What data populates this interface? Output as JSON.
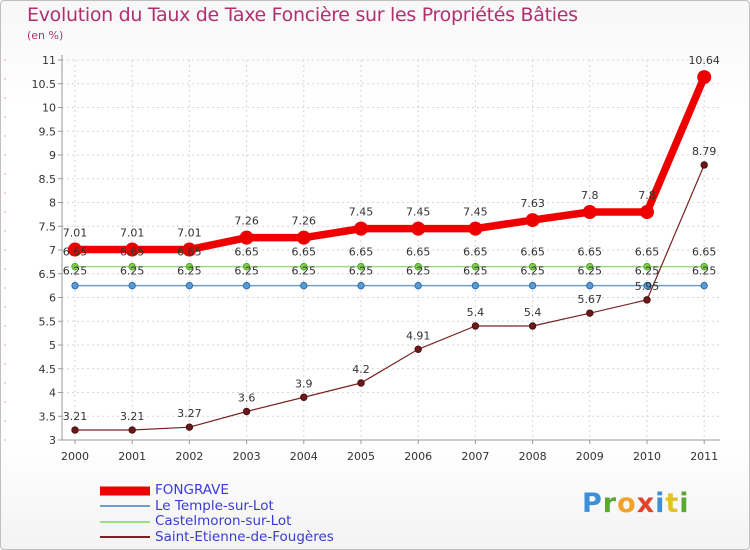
{
  "title": "Evolution du Taux de Taxe Foncière sur les Propriétés Bâties",
  "unit_label": "(en %)",
  "brand": {
    "letters": [
      "P",
      "r",
      "o",
      "x",
      "i",
      "t",
      "i"
    ],
    "colors": [
      "#3d8fd8",
      "#58a832",
      "#f2a12b",
      "#e2432b",
      "#3d8fd8",
      "#e2c12b",
      "#58a832"
    ]
  },
  "chart_data": {
    "type": "line",
    "title": "Evolution du Taux de Taxe Foncière sur les Propriétés Bâties",
    "ylabel": "(en %)",
    "xlabel": "",
    "ylim": [
      3,
      11
    ],
    "yticks": [
      "3",
      "3.5",
      "4",
      "4.5",
      "5",
      "5.5",
      "6",
      "6.5",
      "7",
      "7.5",
      "8",
      "8.5",
      "9",
      "9.5",
      "10",
      "10.5",
      "11"
    ],
    "x": [
      "2000",
      "2001",
      "2002",
      "2003",
      "2004",
      "2005",
      "2006",
      "2007",
      "2008",
      "2009",
      "2010",
      "2011"
    ],
    "series": [
      {
        "name": "FONGRAVE",
        "color": "#ee0000",
        "values": [
          7.01,
          7.01,
          7.01,
          7.26,
          7.26,
          7.45,
          7.45,
          7.45,
          7.63,
          7.8,
          7.8,
          10.64
        ],
        "labels": [
          "7.01",
          "7.01",
          "7.01",
          "7.26",
          "7.26",
          "7.45",
          "7.45",
          "7.45",
          "7.63",
          "7.8",
          "7.8",
          "10.64"
        ]
      },
      {
        "name": "Le Temple-sur-Lot",
        "color": "#6f9fcb",
        "values": [
          6.25,
          6.25,
          6.25,
          6.25,
          6.25,
          6.25,
          6.25,
          6.25,
          6.25,
          6.25,
          6.25,
          6.25
        ],
        "labels": [
          "6.25",
          "6.25",
          "6.25",
          "6.25",
          "6.25",
          "6.25",
          "6.25",
          "6.25",
          "6.25",
          "6.25",
          "6.25",
          "6.25"
        ]
      },
      {
        "name": "Castelmoron-sur-Lot",
        "color": "#9fdc7e",
        "values": [
          6.65,
          6.65,
          6.65,
          6.65,
          6.65,
          6.65,
          6.65,
          6.65,
          6.65,
          6.65,
          6.65,
          6.65
        ],
        "labels": [
          "6.65",
          "6.65",
          "6.65",
          "6.65",
          "6.65",
          "6.65",
          "6.65",
          "6.65",
          "6.65",
          "6.65",
          "6.65",
          "6.65"
        ]
      },
      {
        "name": "Saint-Etienne-de-Fougères",
        "color": "#7a2222",
        "values": [
          3.21,
          3.21,
          3.27,
          3.6,
          3.9,
          4.2,
          4.91,
          5.4,
          5.4,
          5.67,
          5.95,
          8.79
        ],
        "labels": [
          "3.21",
          "3.21",
          "3.27",
          "3.6",
          "3.9",
          "4.2",
          "4.91",
          "5.4",
          "5.4",
          "5.67",
          "5.95",
          "8.79"
        ]
      }
    ]
  }
}
